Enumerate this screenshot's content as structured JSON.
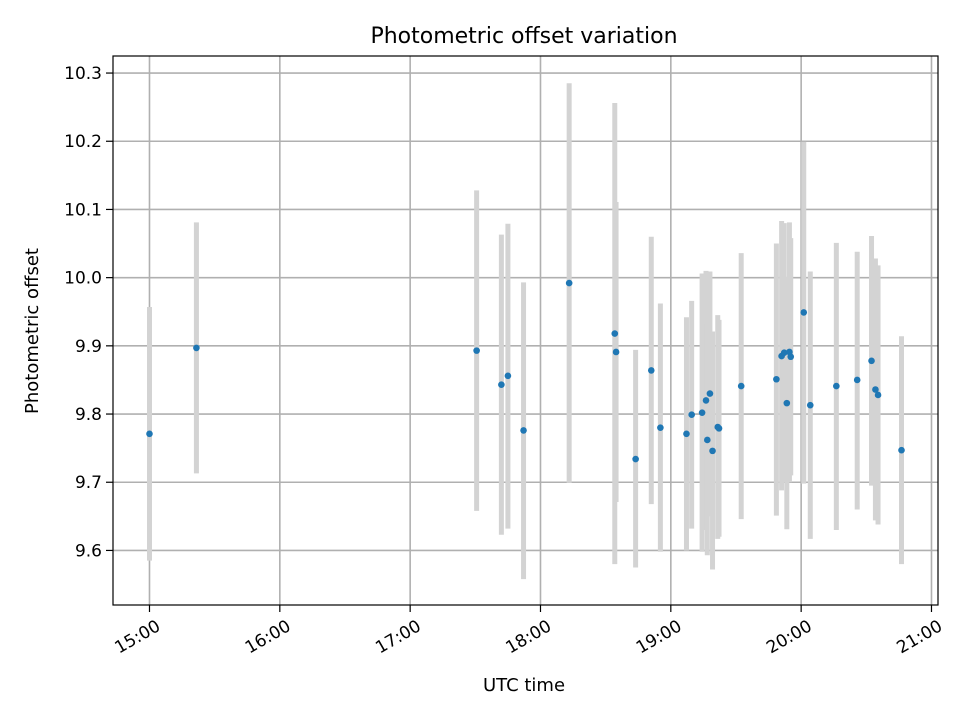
{
  "chart_data": {
    "type": "scatter",
    "title": "Photometric offset variation",
    "xlabel": "UTC time",
    "ylabel": "Photometric offset",
    "x_unit": "hours UTC",
    "xlim": [
      14.72,
      21.05
    ],
    "ylim": [
      9.52,
      10.325
    ],
    "x_ticks": [
      {
        "value": 15,
        "label": "15:00"
      },
      {
        "value": 16,
        "label": "16:00"
      },
      {
        "value": 17,
        "label": "17:00"
      },
      {
        "value": 18,
        "label": "18:00"
      },
      {
        "value": 19,
        "label": "19:00"
      },
      {
        "value": 20,
        "label": "20:00"
      },
      {
        "value": 21,
        "label": "21:00"
      }
    ],
    "y_ticks": [
      {
        "value": 9.6,
        "label": "9.6"
      },
      {
        "value": 9.7,
        "label": "9.7"
      },
      {
        "value": 9.8,
        "label": "9.8"
      },
      {
        "value": 9.9,
        "label": "9.9"
      },
      {
        "value": 10.0,
        "label": "10.0"
      },
      {
        "value": 10.1,
        "label": "10.1"
      },
      {
        "value": 10.2,
        "label": "10.2"
      },
      {
        "value": 10.3,
        "label": "10.3"
      }
    ],
    "grid": true,
    "point_color": "#1f77b4",
    "errorbar_color": "#d3d3d3",
    "points": [
      {
        "x": 15.0,
        "y": 9.771,
        "ylo": 9.585,
        "yhi": 9.957
      },
      {
        "x": 15.36,
        "y": 9.897,
        "ylo": 9.713,
        "yhi": 10.081
      },
      {
        "x": 17.51,
        "y": 9.893,
        "ylo": 9.658,
        "yhi": 10.128
      },
      {
        "x": 17.7,
        "y": 9.843,
        "ylo": 9.623,
        "yhi": 10.063
      },
      {
        "x": 17.75,
        "y": 9.856,
        "ylo": 9.632,
        "yhi": 10.079
      },
      {
        "x": 17.87,
        "y": 9.776,
        "ylo": 9.558,
        "yhi": 9.993
      },
      {
        "x": 18.22,
        "y": 9.992,
        "ylo": 9.699,
        "yhi": 10.285
      },
      {
        "x": 18.57,
        "y": 9.918,
        "ylo": 9.58,
        "yhi": 10.256
      },
      {
        "x": 18.58,
        "y": 9.891,
        "ylo": 9.671,
        "yhi": 10.111
      },
      {
        "x": 18.73,
        "y": 9.734,
        "ylo": 9.575,
        "yhi": 9.894
      },
      {
        "x": 18.85,
        "y": 9.864,
        "ylo": 9.668,
        "yhi": 10.06
      },
      {
        "x": 18.92,
        "y": 9.78,
        "ylo": 9.598,
        "yhi": 9.962
      },
      {
        "x": 19.12,
        "y": 9.771,
        "ylo": 9.6,
        "yhi": 9.942
      },
      {
        "x": 19.16,
        "y": 9.799,
        "ylo": 9.632,
        "yhi": 9.966
      },
      {
        "x": 19.24,
        "y": 9.802,
        "ylo": 9.598,
        "yhi": 10.006
      },
      {
        "x": 19.27,
        "y": 9.82,
        "ylo": 9.63,
        "yhi": 10.01
      },
      {
        "x": 19.28,
        "y": 9.762,
        "ylo": 9.593,
        "yhi": 9.932
      },
      {
        "x": 19.3,
        "y": 9.83,
        "ylo": 9.65,
        "yhi": 10.009
      },
      {
        "x": 19.32,
        "y": 9.746,
        "ylo": 9.572,
        "yhi": 9.921
      },
      {
        "x": 19.36,
        "y": 9.781,
        "ylo": 9.617,
        "yhi": 9.945
      },
      {
        "x": 19.37,
        "y": 9.779,
        "ylo": 9.62,
        "yhi": 9.938
      },
      {
        "x": 19.54,
        "y": 9.841,
        "ylo": 9.646,
        "yhi": 10.036
      },
      {
        "x": 19.81,
        "y": 9.851,
        "ylo": 9.651,
        "yhi": 10.05
      },
      {
        "x": 19.85,
        "y": 9.885,
        "ylo": 9.688,
        "yhi": 10.083
      },
      {
        "x": 19.87,
        "y": 9.89,
        "ylo": 9.7,
        "yhi": 10.08
      },
      {
        "x": 19.89,
        "y": 9.816,
        "ylo": 9.631,
        "yhi": 10.001
      },
      {
        "x": 19.91,
        "y": 9.891,
        "ylo": 9.7,
        "yhi": 10.081
      },
      {
        "x": 19.92,
        "y": 9.884,
        "ylo": 9.71,
        "yhi": 10.058
      },
      {
        "x": 20.02,
        "y": 9.949,
        "ylo": 9.698,
        "yhi": 10.199
      },
      {
        "x": 20.07,
        "y": 9.813,
        "ylo": 9.617,
        "yhi": 10.009
      },
      {
        "x": 20.27,
        "y": 9.841,
        "ylo": 9.63,
        "yhi": 10.051
      },
      {
        "x": 20.43,
        "y": 9.85,
        "ylo": 9.66,
        "yhi": 10.038
      },
      {
        "x": 20.54,
        "y": 9.878,
        "ylo": 9.695,
        "yhi": 10.061
      },
      {
        "x": 20.57,
        "y": 9.836,
        "ylo": 9.644,
        "yhi": 10.028
      },
      {
        "x": 20.59,
        "y": 9.828,
        "ylo": 9.638,
        "yhi": 10.018
      },
      {
        "x": 20.77,
        "y": 9.747,
        "ylo": 9.58,
        "yhi": 9.914
      }
    ]
  }
}
